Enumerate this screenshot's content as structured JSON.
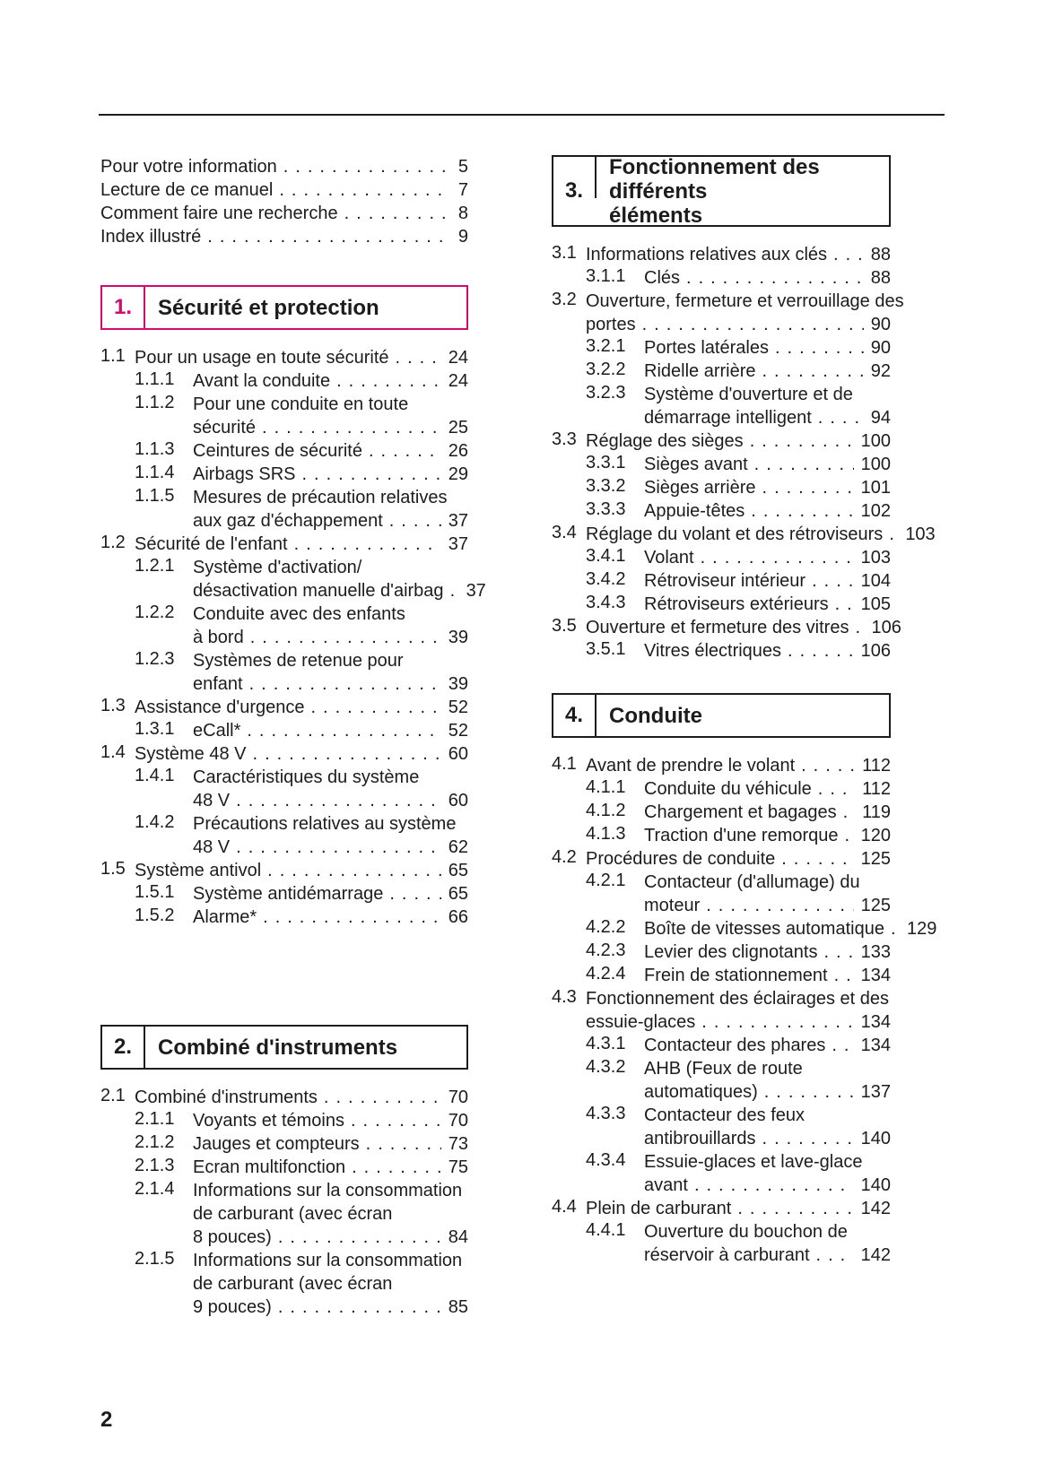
{
  "page": {
    "number": "2"
  },
  "colors": {
    "accent": "#d40a6e",
    "ink": "#1c1c1c"
  },
  "intro_links": [
    {
      "label": "Pour votre information",
      "page": "5"
    },
    {
      "label": "Lecture de ce manuel",
      "page": "7"
    },
    {
      "label": "Comment faire une recherche",
      "page": "8"
    },
    {
      "label": "Index illustré",
      "page": "9"
    }
  ],
  "sections": [
    {
      "key": "sec-1",
      "column": "left",
      "num": "1.",
      "title_lines": [
        "Sécurité et protection"
      ],
      "accent": true,
      "entries": [
        {
          "num": "1.1",
          "lines": [
            "Pour un usage en toute sécurité"
          ],
          "page": "24"
        },
        {
          "num": "1.1.1",
          "lines": [
            "Avant la conduite"
          ],
          "page": "24"
        },
        {
          "num": "1.1.2",
          "lines": [
            "Pour une conduite en toute",
            "sécurité"
          ],
          "page": "25"
        },
        {
          "num": "1.1.3",
          "lines": [
            "Ceintures de sécurité"
          ],
          "page": "26"
        },
        {
          "num": "1.1.4",
          "lines": [
            "Airbags SRS"
          ],
          "page": "29"
        },
        {
          "num": "1.1.5",
          "lines": [
            "Mesures de précaution relatives",
            "aux gaz d'échappement"
          ],
          "page": "37"
        },
        {
          "num": "1.2",
          "lines": [
            "Sécurité de l'enfant"
          ],
          "page": "37"
        },
        {
          "num": "1.2.1",
          "lines": [
            "Système d'activation/",
            "désactivation manuelle d'airbag"
          ],
          "page": "37"
        },
        {
          "num": "1.2.2",
          "lines": [
            "Conduite avec des enfants",
            "à bord"
          ],
          "page": "39"
        },
        {
          "num": "1.2.3",
          "lines": [
            "Systèmes de retenue pour",
            "enfant"
          ],
          "page": "39"
        },
        {
          "num": "1.3",
          "lines": [
            "Assistance d'urgence"
          ],
          "page": "52"
        },
        {
          "num": "1.3.1",
          "lines": [
            "eCall*"
          ],
          "page": "52"
        },
        {
          "num": "1.4",
          "lines": [
            "Système 48 V"
          ],
          "page": "60"
        },
        {
          "num": "1.4.1",
          "lines": [
            "Caractéristiques du système",
            "48 V"
          ],
          "page": "60"
        },
        {
          "num": "1.4.2",
          "lines": [
            "Précautions relatives au système",
            "48 V"
          ],
          "page": "62"
        },
        {
          "num": "1.5",
          "lines": [
            "Système antivol"
          ],
          "page": "65"
        },
        {
          "num": "1.5.1",
          "lines": [
            "Système antidémarrage"
          ],
          "page": "65"
        },
        {
          "num": "1.5.2",
          "lines": [
            "Alarme*"
          ],
          "page": "66"
        }
      ]
    },
    {
      "key": "sec-2",
      "column": "left",
      "num": "2.",
      "title_lines": [
        "Combiné d'instruments"
      ],
      "accent": false,
      "entries": [
        {
          "num": "2.1",
          "lines": [
            "Combiné d'instruments"
          ],
          "page": "70"
        },
        {
          "num": "2.1.1",
          "lines": [
            "Voyants et témoins"
          ],
          "page": "70"
        },
        {
          "num": "2.1.2",
          "lines": [
            "Jauges et compteurs"
          ],
          "page": "73"
        },
        {
          "num": "2.1.3",
          "lines": [
            "Ecran multifonction"
          ],
          "page": "75"
        },
        {
          "num": "2.1.4",
          "lines": [
            "Informations sur la consommation",
            "de carburant (avec écran",
            "8 pouces)"
          ],
          "page": "84"
        },
        {
          "num": "2.1.5",
          "lines": [
            "Informations sur la consommation",
            "de carburant (avec écran",
            "9 pouces)"
          ],
          "page": "85"
        }
      ]
    },
    {
      "key": "sec-3",
      "column": "right",
      "num": "3.",
      "title_lines": [
        "Fonctionnement des différents",
        "éléments"
      ],
      "accent": false,
      "entries": [
        {
          "num": "3.1",
          "lines": [
            "Informations relatives aux clés"
          ],
          "page": "88"
        },
        {
          "num": "3.1.1",
          "lines": [
            "Clés"
          ],
          "page": "88"
        },
        {
          "num": "3.2",
          "lines": [
            "Ouverture, fermeture et verrouillage des",
            "portes"
          ],
          "page": "90"
        },
        {
          "num": "3.2.1",
          "lines": [
            "Portes latérales"
          ],
          "page": "90"
        },
        {
          "num": "3.2.2",
          "lines": [
            "Ridelle arrière"
          ],
          "page": "92"
        },
        {
          "num": "3.2.3",
          "lines": [
            "Système d'ouverture et de",
            "démarrage intelligent"
          ],
          "page": "94"
        },
        {
          "num": "3.3",
          "lines": [
            "Réglage des sièges"
          ],
          "page": "100"
        },
        {
          "num": "3.3.1",
          "lines": [
            "Sièges avant"
          ],
          "page": "100"
        },
        {
          "num": "3.3.2",
          "lines": [
            "Sièges arrière"
          ],
          "page": "101"
        },
        {
          "num": "3.3.3",
          "lines": [
            "Appuie-têtes"
          ],
          "page": "102"
        },
        {
          "num": "3.4",
          "lines": [
            "Réglage du volant et des rétroviseurs"
          ],
          "page": "103"
        },
        {
          "num": "3.4.1",
          "lines": [
            "Volant"
          ],
          "page": "103"
        },
        {
          "num": "3.4.2",
          "lines": [
            "Rétroviseur intérieur"
          ],
          "page": "104"
        },
        {
          "num": "3.4.3",
          "lines": [
            "Rétroviseurs extérieurs"
          ],
          "page": "105"
        },
        {
          "num": "3.5",
          "lines": [
            "Ouverture et fermeture des vitres"
          ],
          "page": "106"
        },
        {
          "num": "3.5.1",
          "lines": [
            "Vitres électriques"
          ],
          "page": "106"
        }
      ]
    },
    {
      "key": "sec-4",
      "column": "right",
      "num": "4.",
      "title_lines": [
        "Conduite"
      ],
      "accent": false,
      "entries": [
        {
          "num": "4.1",
          "lines": [
            "Avant de prendre le volant"
          ],
          "page": "112"
        },
        {
          "num": "4.1.1",
          "lines": [
            "Conduite du véhicule"
          ],
          "page": "112"
        },
        {
          "num": "4.1.2",
          "lines": [
            "Chargement et bagages"
          ],
          "page": "119"
        },
        {
          "num": "4.1.3",
          "lines": [
            "Traction d'une remorque"
          ],
          "page": "120"
        },
        {
          "num": "4.2",
          "lines": [
            "Procédures de conduite"
          ],
          "page": "125"
        },
        {
          "num": "4.2.1",
          "lines": [
            "Contacteur (d'allumage) du",
            "moteur"
          ],
          "page": "125"
        },
        {
          "num": "4.2.2",
          "lines": [
            "Boîte de vitesses automatique"
          ],
          "page": "129"
        },
        {
          "num": "4.2.3",
          "lines": [
            "Levier des clignotants"
          ],
          "page": "133"
        },
        {
          "num": "4.2.4",
          "lines": [
            "Frein de stationnement"
          ],
          "page": "134"
        },
        {
          "num": "4.3",
          "lines": [
            "Fonctionnement des éclairages et des",
            "essuie-glaces"
          ],
          "page": "134"
        },
        {
          "num": "4.3.1",
          "lines": [
            "Contacteur des phares"
          ],
          "page": "134"
        },
        {
          "num": "4.3.2",
          "lines": [
            "AHB (Feux de route",
            "automatiques)"
          ],
          "page": "137"
        },
        {
          "num": "4.3.3",
          "lines": [
            "Contacteur des feux",
            "antibrouillards"
          ],
          "page": "140"
        },
        {
          "num": "4.3.4",
          "lines": [
            "Essuie-glaces et lave-glace",
            "avant"
          ],
          "page": "140"
        },
        {
          "num": "4.4",
          "lines": [
            "Plein de carburant"
          ],
          "page": "142"
        },
        {
          "num": "4.4.1",
          "lines": [
            "Ouverture du bouchon de",
            "réservoir à carburant"
          ],
          "page": "142"
        }
      ]
    }
  ]
}
